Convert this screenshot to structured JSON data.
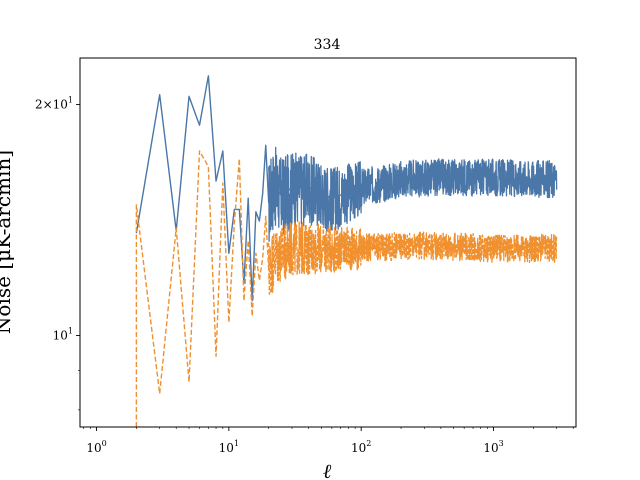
{
  "chart_data": {
    "type": "line",
    "title": "334",
    "xlabel": "ℓ",
    "ylabel": "Noise [μK-arcmin]",
    "xscale": "log",
    "yscale": "log",
    "xlim": [
      0.75,
      4200
    ],
    "ylim": [
      7.6,
      23
    ],
    "x_ticks": [
      {
        "value": 1,
        "base": "10",
        "exp": "0"
      },
      {
        "value": 10,
        "base": "10",
        "exp": "1"
      },
      {
        "value": 100,
        "base": "10",
        "exp": "2"
      },
      {
        "value": 1000,
        "base": "10",
        "exp": "3"
      }
    ],
    "y_ticks": [
      {
        "value": 10,
        "base": "10",
        "exp": "1",
        "prefix": ""
      },
      {
        "value": 20,
        "base": "10",
        "exp": "1",
        "prefix": "2×"
      }
    ],
    "grid": false,
    "legend": "none",
    "series": [
      {
        "color": "#4a76a8",
        "dash": "solid",
        "x": [
          2,
          3,
          4,
          5,
          6,
          7,
          8,
          9,
          10,
          11,
          12,
          13,
          14,
          15,
          16,
          17,
          18,
          19,
          20,
          22,
          25,
          30,
          40,
          60,
          100,
          200,
          400,
          1000,
          3000
        ],
        "y": [
          13.6,
          20.6,
          13.7,
          20.5,
          18.8,
          21.8,
          15.9,
          17.4,
          12.8,
          14.6,
          14.6,
          11.7,
          15.1,
          11.1,
          14.5,
          14.1,
          15.3,
          17.7,
          14.9,
          15.8,
          15.2,
          15.6,
          15.6,
          15.1,
          15.6,
          16.0,
          16.1,
          16.1,
          16.0
        ],
        "band": {
          "from": 100,
          "to": 3000,
          "half_width": 0.9
        }
      },
      {
        "color": "#f0902e",
        "dash": "dashed",
        "x": [
          2,
          2,
          3,
          4,
          5,
          6,
          7,
          8,
          9,
          10,
          11,
          12,
          13,
          14,
          15,
          16,
          17,
          18,
          19,
          20,
          22,
          25,
          30,
          40,
          60,
          100,
          200,
          400,
          1000,
          3000
        ],
        "y": [
          7.6,
          14.8,
          8.4,
          13.8,
          8.7,
          17.4,
          16.6,
          9.4,
          15.8,
          10.4,
          14.0,
          17.0,
          11.1,
          13.3,
          10.6,
          12.8,
          11.8,
          12.6,
          14.3,
          12.2,
          12.7,
          12.8,
          13.0,
          13.0,
          13.0,
          13.0,
          13.1,
          13.1,
          13.0,
          13.0
        ],
        "band": {
          "from": 100,
          "to": 3000,
          "half_width": 0.55
        }
      }
    ]
  }
}
